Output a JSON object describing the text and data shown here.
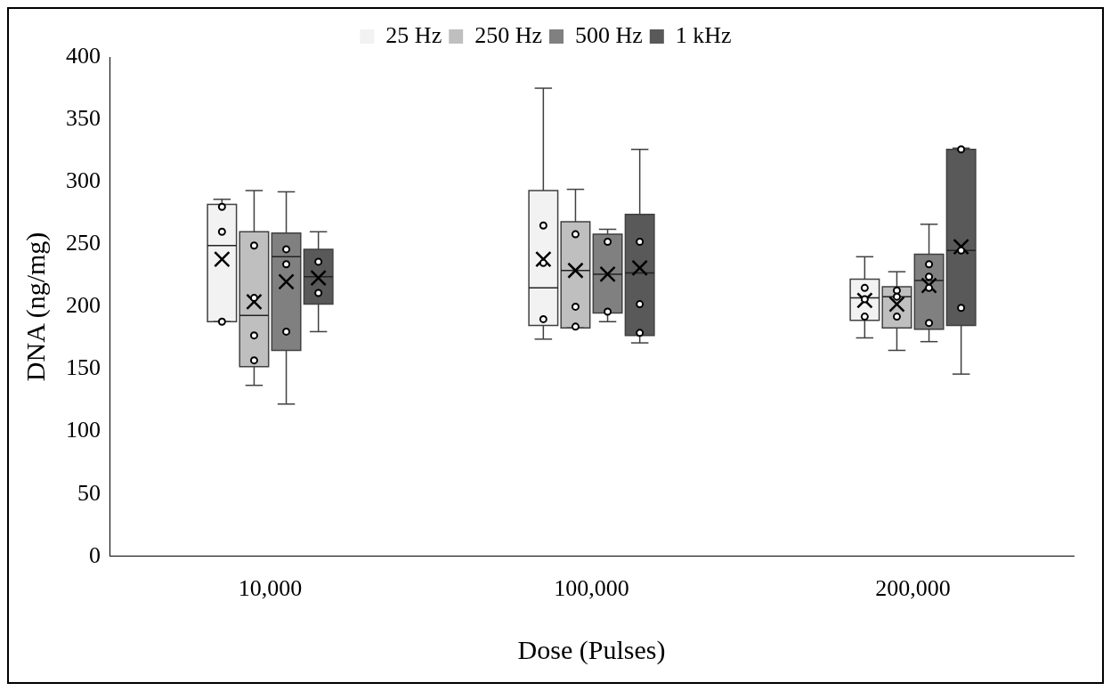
{
  "chart_data": {
    "type": "box",
    "xlabel": "Dose (Pulses)",
    "ylabel": "DNA (ng/mg)",
    "categories": [
      "10,000",
      "100,000",
      "200,000"
    ],
    "ylim": [
      0,
      400
    ],
    "yticks": [
      0,
      50,
      100,
      150,
      200,
      250,
      300,
      350,
      400
    ],
    "grid": false,
    "legend": "top",
    "series": [
      {
        "name": "25 Hz",
        "color": "#f2f2f2",
        "boxes": [
          {
            "low": 188,
            "q1": 188,
            "median": 249,
            "q3": 282,
            "high": 286,
            "mean": 238,
            "outliers": [
              280,
              260,
              188
            ]
          },
          {
            "low": 174,
            "q1": 185,
            "median": 215,
            "q3": 293,
            "high": 375,
            "mean": 238,
            "outliers": [
              265,
              235,
              190
            ]
          },
          {
            "low": 175,
            "q1": 189,
            "median": 207,
            "q3": 222,
            "high": 240,
            "mean": 205,
            "outliers": [
              215,
              206,
              192
            ]
          }
        ]
      },
      {
        "name": "250 Hz",
        "color": "#bfbfbf",
        "boxes": [
          {
            "low": 137,
            "q1": 152,
            "median": 193,
            "q3": 260,
            "high": 293,
            "mean": 204,
            "outliers": [
              249,
              207,
              177,
              157
            ]
          },
          {
            "low": 183,
            "q1": 183,
            "median": 229,
            "q3": 268,
            "high": 294,
            "mean": 229,
            "outliers": [
              258,
              200,
              184
            ]
          },
          {
            "low": 165,
            "q1": 183,
            "median": 208,
            "q3": 216,
            "high": 228,
            "mean": 202,
            "outliers": [
              213,
              208,
              192
            ]
          }
        ]
      },
      {
        "name": "500 Hz",
        "color": "#808080",
        "boxes": [
          {
            "low": 122,
            "q1": 165,
            "median": 240,
            "q3": 259,
            "high": 292,
            "mean": 220,
            "outliers": [
              246,
              234,
              180
            ]
          },
          {
            "low": 188,
            "q1": 195,
            "median": 226,
            "q3": 258,
            "high": 262,
            "mean": 226,
            "outliers": [
              252,
              196
            ]
          },
          {
            "low": 172,
            "q1": 182,
            "median": 221,
            "q3": 242,
            "high": 266,
            "mean": 217,
            "outliers": [
              234,
              224,
              215,
              187
            ]
          }
        ]
      },
      {
        "name": "1 kHz",
        "color": "#595959",
        "boxes": [
          {
            "low": 180,
            "q1": 202,
            "median": 224,
            "q3": 246,
            "high": 260,
            "mean": 223,
            "outliers": [
              236,
              211
            ]
          },
          {
            "low": 171,
            "q1": 177,
            "median": 227,
            "q3": 274,
            "high": 326,
            "mean": 231,
            "outliers": [
              252,
              202,
              179
            ]
          },
          {
            "low": 146,
            "q1": 185,
            "median": 245,
            "q3": 326,
            "high": 327,
            "mean": 248,
            "outliers": [
              326,
              245,
              199
            ]
          }
        ]
      }
    ]
  }
}
